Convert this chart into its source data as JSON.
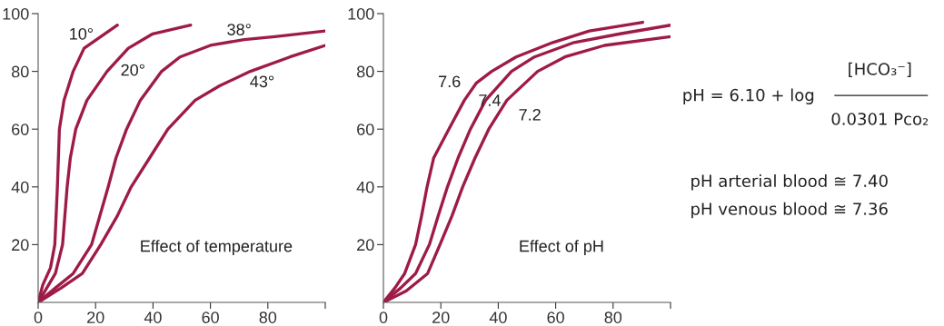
{
  "chart_data": [
    {
      "type": "line",
      "xlim": [
        0,
        100
      ],
      "ylim": [
        0,
        100
      ],
      "xticks": [
        0,
        20,
        40,
        60,
        80,
        {
          "value": 100,
          "label": null
        }
      ],
      "yticks": [
        20,
        40,
        60,
        80,
        100
      ],
      "grid": false,
      "line_style": "solid",
      "series": [
        {
          "name": "10°",
          "color": "#9e1b47",
          "x": [
            0,
            1.6,
            4.3,
            5.8,
            6.7,
            7.4,
            9,
            12.2,
            16,
            27.6
          ],
          "values": [
            0,
            6,
            12,
            20,
            40,
            60,
            70,
            80,
            88,
            96
          ]
        },
        {
          "name": "20°",
          "color": "#9e1b47",
          "x": [
            0,
            3,
            6,
            8.5,
            10.1,
            11.2,
            13.1,
            17,
            24,
            31.4,
            39.9,
            53.1
          ],
          "values": [
            0,
            5,
            10,
            20,
            40,
            50,
            60,
            70,
            80,
            88,
            93,
            96
          ]
        },
        {
          "name": "38°",
          "color": "#9e1b47",
          "x": [
            0,
            6,
            12.2,
            18.6,
            24.4,
            27.1,
            30.8,
            35.6,
            43,
            49.4,
            60,
            71.7,
            82.4,
            100
          ],
          "values": [
            0,
            5,
            10,
            20,
            40,
            50,
            60,
            70,
            80,
            85,
            89,
            91,
            92,
            94
          ]
        },
        {
          "name": "43°",
          "color": "#9e1b47",
          "x": [
            0,
            8,
            15.4,
            21.8,
            27.6,
            32.4,
            38.8,
            45.2,
            54.7,
            63.2,
            73.9,
            87.7,
            100
          ],
          "values": [
            0,
            5,
            10,
            20,
            30,
            40,
            50,
            60,
            70,
            75,
            80,
            85,
            89
          ]
        }
      ],
      "annotations": [
        "Effect of temperature"
      ]
    },
    {
      "type": "line",
      "xlim": [
        0,
        100
      ],
      "ylim": [
        0,
        100
      ],
      "xticks": [
        0,
        20,
        40,
        60,
        80,
        {
          "value": 100,
          "label": null
        }
      ],
      "yticks": [
        20,
        40,
        60,
        80,
        100
      ],
      "grid": false,
      "line_style": "solid",
      "series": [
        {
          "name": "7.6",
          "color": "#9e1b47",
          "x": [
            0,
            4,
            7.4,
            11.2,
            13.3,
            15.2,
            17.5,
            22.8,
            28.2,
            32.4,
            37.7,
            46.2,
            59,
            71.7,
            90.3
          ],
          "values": [
            0,
            5,
            10,
            20,
            30,
            40,
            50,
            60,
            70,
            76,
            80,
            85,
            90,
            94,
            97
          ]
        },
        {
          "name": "7.4",
          "color": "#9e1b47",
          "x": [
            0,
            6,
            11.2,
            16,
            19.1,
            22.3,
            26,
            30.3,
            35.6,
            44.6,
            52.6,
            66.4,
            82.4,
            100
          ],
          "values": [
            0,
            5,
            10,
            20,
            30,
            40,
            50,
            60,
            70,
            80,
            85,
            90,
            93,
            96
          ]
        },
        {
          "name": "7.2",
          "color": "#9e1b47",
          "x": [
            0,
            8,
            15.4,
            19.7,
            23.9,
            27.6,
            31.9,
            36.7,
            43,
            53.7,
            63.2,
            77,
            100
          ],
          "values": [
            0,
            4,
            10,
            20,
            30,
            40,
            50,
            60,
            70,
            80,
            85,
            89,
            92
          ]
        }
      ],
      "annotations": [
        "Effect of pH"
      ]
    },
    {
      "type": "other",
      "annotations": [
        "pH = 6.10 + log",
        "[HCO₃⁻]",
        "0.0301 Pco₂",
        "pH arterial blood ≅ 7.40",
        "pH venous blood ≅ 7.36"
      ]
    }
  ]
}
